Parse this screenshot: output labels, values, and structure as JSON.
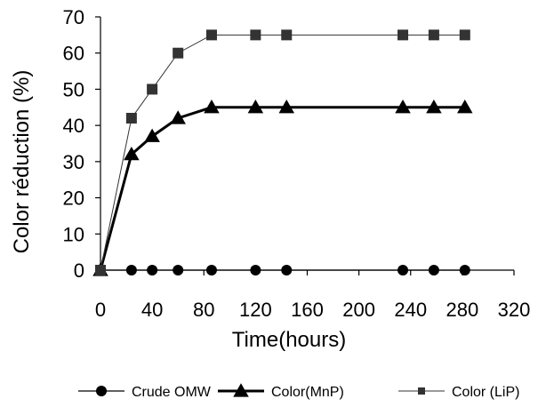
{
  "chart_data": {
    "type": "line",
    "xlabel": "Time(hours)",
    "ylabel": "Color réduction (%)",
    "xlim": [
      0,
      320
    ],
    "ylim": [
      0,
      70
    ],
    "x_ticks": [
      0,
      40,
      80,
      120,
      160,
      200,
      240,
      280,
      320
    ],
    "y_ticks": [
      0,
      10,
      20,
      30,
      40,
      50,
      60,
      70
    ],
    "grid": false,
    "legend_position": "bottom",
    "series": [
      {
        "name": "Crude OMW",
        "marker": "circle",
        "color": "#000000",
        "x": [
          0,
          24,
          40,
          60,
          86,
          120,
          144,
          234,
          258,
          282
        ],
        "y": [
          0,
          0,
          0,
          0,
          0,
          0,
          0,
          0,
          0,
          0
        ]
      },
      {
        "name": "Color(MnP)",
        "marker": "triangle",
        "color": "#000000",
        "x": [
          0,
          24,
          40,
          60,
          86,
          120,
          144,
          234,
          258,
          282
        ],
        "y": [
          0,
          32,
          37,
          42,
          45,
          45,
          45,
          45,
          45,
          45
        ]
      },
      {
        "name": "Color (LiP)",
        "marker": "square",
        "color": "#333333",
        "x": [
          0,
          24,
          40,
          60,
          86,
          120,
          144,
          234,
          258,
          282
        ],
        "y": [
          0,
          42,
          50,
          60,
          65,
          65,
          65,
          65,
          65,
          65
        ]
      }
    ]
  }
}
